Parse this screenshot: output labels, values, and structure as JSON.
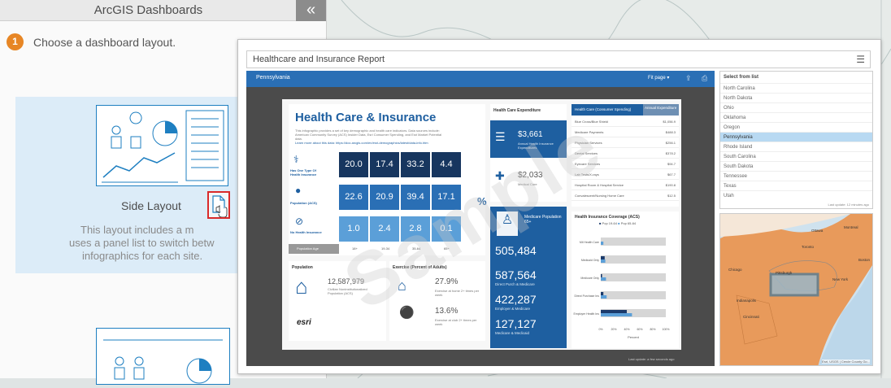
{
  "panel": {
    "title": "ArcGIS Dashboards",
    "collapse_icon": "double-chevron-left-icon",
    "step_number": "1",
    "step_text": "Choose a dashboard layout.",
    "layout_name": "Side Layout",
    "layout_desc_1": "This layout includes a m",
    "layout_desc_2": "uses a panel list to switch betw",
    "layout_desc_3": "infographics for each site."
  },
  "popup": {
    "title": "Healthcare and Insurance Report",
    "menu_icon": "hamburger-menu-icon"
  },
  "dashboard": {
    "state": "Pennsylvania",
    "fit_page": "Fit page ▾",
    "watermark": "Sample",
    "infographic": {
      "title": "Health Care & Insurance",
      "intro": "This infographic provides a set of key demographic and health care indicators. Data sources include: American Community Survey (ACS) Insider Data, Esri Consumer Spending, and Esri Market Potential data.",
      "learn_more": "Learn more about this data: https://doc.arcgis.com/en/esri-demographics/latest/data-info.htm",
      "rows": [
        {
          "label": "Has One Type Of Health Insurance",
          "values": [
            "20.0",
            "17.4",
            "33.2",
            "4.4"
          ]
        },
        {
          "label": "Population (ACS)",
          "values": [
            "22.6",
            "20.9",
            "39.4",
            "17.1"
          ]
        },
        {
          "label": "No Health Insurance",
          "values": [
            "1.0",
            "2.4",
            "2.8",
            "0.1"
          ]
        }
      ],
      "pct_symbol": "%",
      "age_header": "Population Age",
      "age_groups": [
        "18+",
        "19-34",
        "35-64",
        "65+"
      ],
      "expenditure_title": "Health Care Expenditure",
      "expenditure_1_value": "$3,661",
      "expenditure_1_label": "Annual Health Insurance Expenditures",
      "expenditure_2_value": "$2,033",
      "expenditure_2_label": "Medical Care",
      "spending_header_1": "Health Care (Consumer Spending)",
      "spending_header_2": "Annual Expenditure",
      "spending_rows": [
        {
          "label": "Blue Cross/Blue Shield",
          "value": "$1,056.9"
        },
        {
          "label": "Medicare Payments",
          "value": "$488.3"
        },
        {
          "label": "Physician Services",
          "value": "$256.1"
        },
        {
          "label": "Dental Services",
          "value": "$378.2"
        },
        {
          "label": "Eyecare Services",
          "value": "$94.7"
        },
        {
          "label": "Lab Tests/X-rays",
          "value": "$67.7"
        },
        {
          "label": "Hospital Room & Hospital Service",
          "value": "$190.8"
        },
        {
          "label": "Convalescent/Nursing Home Care",
          "value": "$12.5"
        }
      ],
      "medicare_title": "Medicare Population 65+",
      "medicare_stats": [
        {
          "value": "505,484",
          "label": ""
        },
        {
          "value": "587,564",
          "label": "Direct Purch & Medicare"
        },
        {
          "value": "422,287",
          "label": "Employer & Medicare"
        },
        {
          "value": "127,127",
          "label": "Medicare & Medicaid"
        }
      ],
      "coverage_title": "Health Insurance Coverage (ACS)",
      "coverage_legend": [
        "Pop 19-64",
        "Pop 65-64"
      ],
      "coverage_categories": [
        "Mil Health Care",
        "Medicaid Only",
        "Medicare Only",
        "Direct Purchase Ins",
        "Employer Health Ins"
      ],
      "coverage_xlabel": "Percent",
      "coverage_ticks": [
        "0%",
        "20%",
        "40%",
        "60%",
        "80%",
        "100%"
      ],
      "population_title": "Population",
      "population_value": "12,587,979",
      "population_label": "Civilian Noninstitutionalized Population (ACS)",
      "exercise_title": "Exercise (Percent of Adults)",
      "exercise_1_value": "27.9%",
      "exercise_1_label": "Exercise at home 2+ times per week",
      "exercise_2_value": "13.6%",
      "exercise_2_label": "Exercise at club 2+ times per week",
      "esri_logo": "esri"
    },
    "list": {
      "header": "Select from list",
      "items": [
        "North Carolina",
        "North Dakota",
        "Ohio",
        "Oklahoma",
        "Oregon",
        "Pennsylvania",
        "Rhode Island",
        "South Carolina",
        "South Dakota",
        "Tennessee",
        "Texas",
        "Utah"
      ],
      "selected": "Pennsylvania",
      "last_update": "Last update: 12 minutes ago"
    },
    "map": {
      "labels": [
        "Ottawa",
        "Montreal",
        "Toronto",
        "Chicago",
        "Pittsburgh",
        "Indianapolis",
        "Cincinnati",
        "Boston",
        "New York"
      ],
      "attribution": "Esri, USGS | Cercle County Go...",
      "footer_note": "Last update: a few seconds ago"
    }
  },
  "colors": {
    "accent_blue": "#2a6fb5",
    "dark_navy": "#1b3a6b",
    "step_orange": "#e78625",
    "selected_row": "#b8d9f2"
  }
}
